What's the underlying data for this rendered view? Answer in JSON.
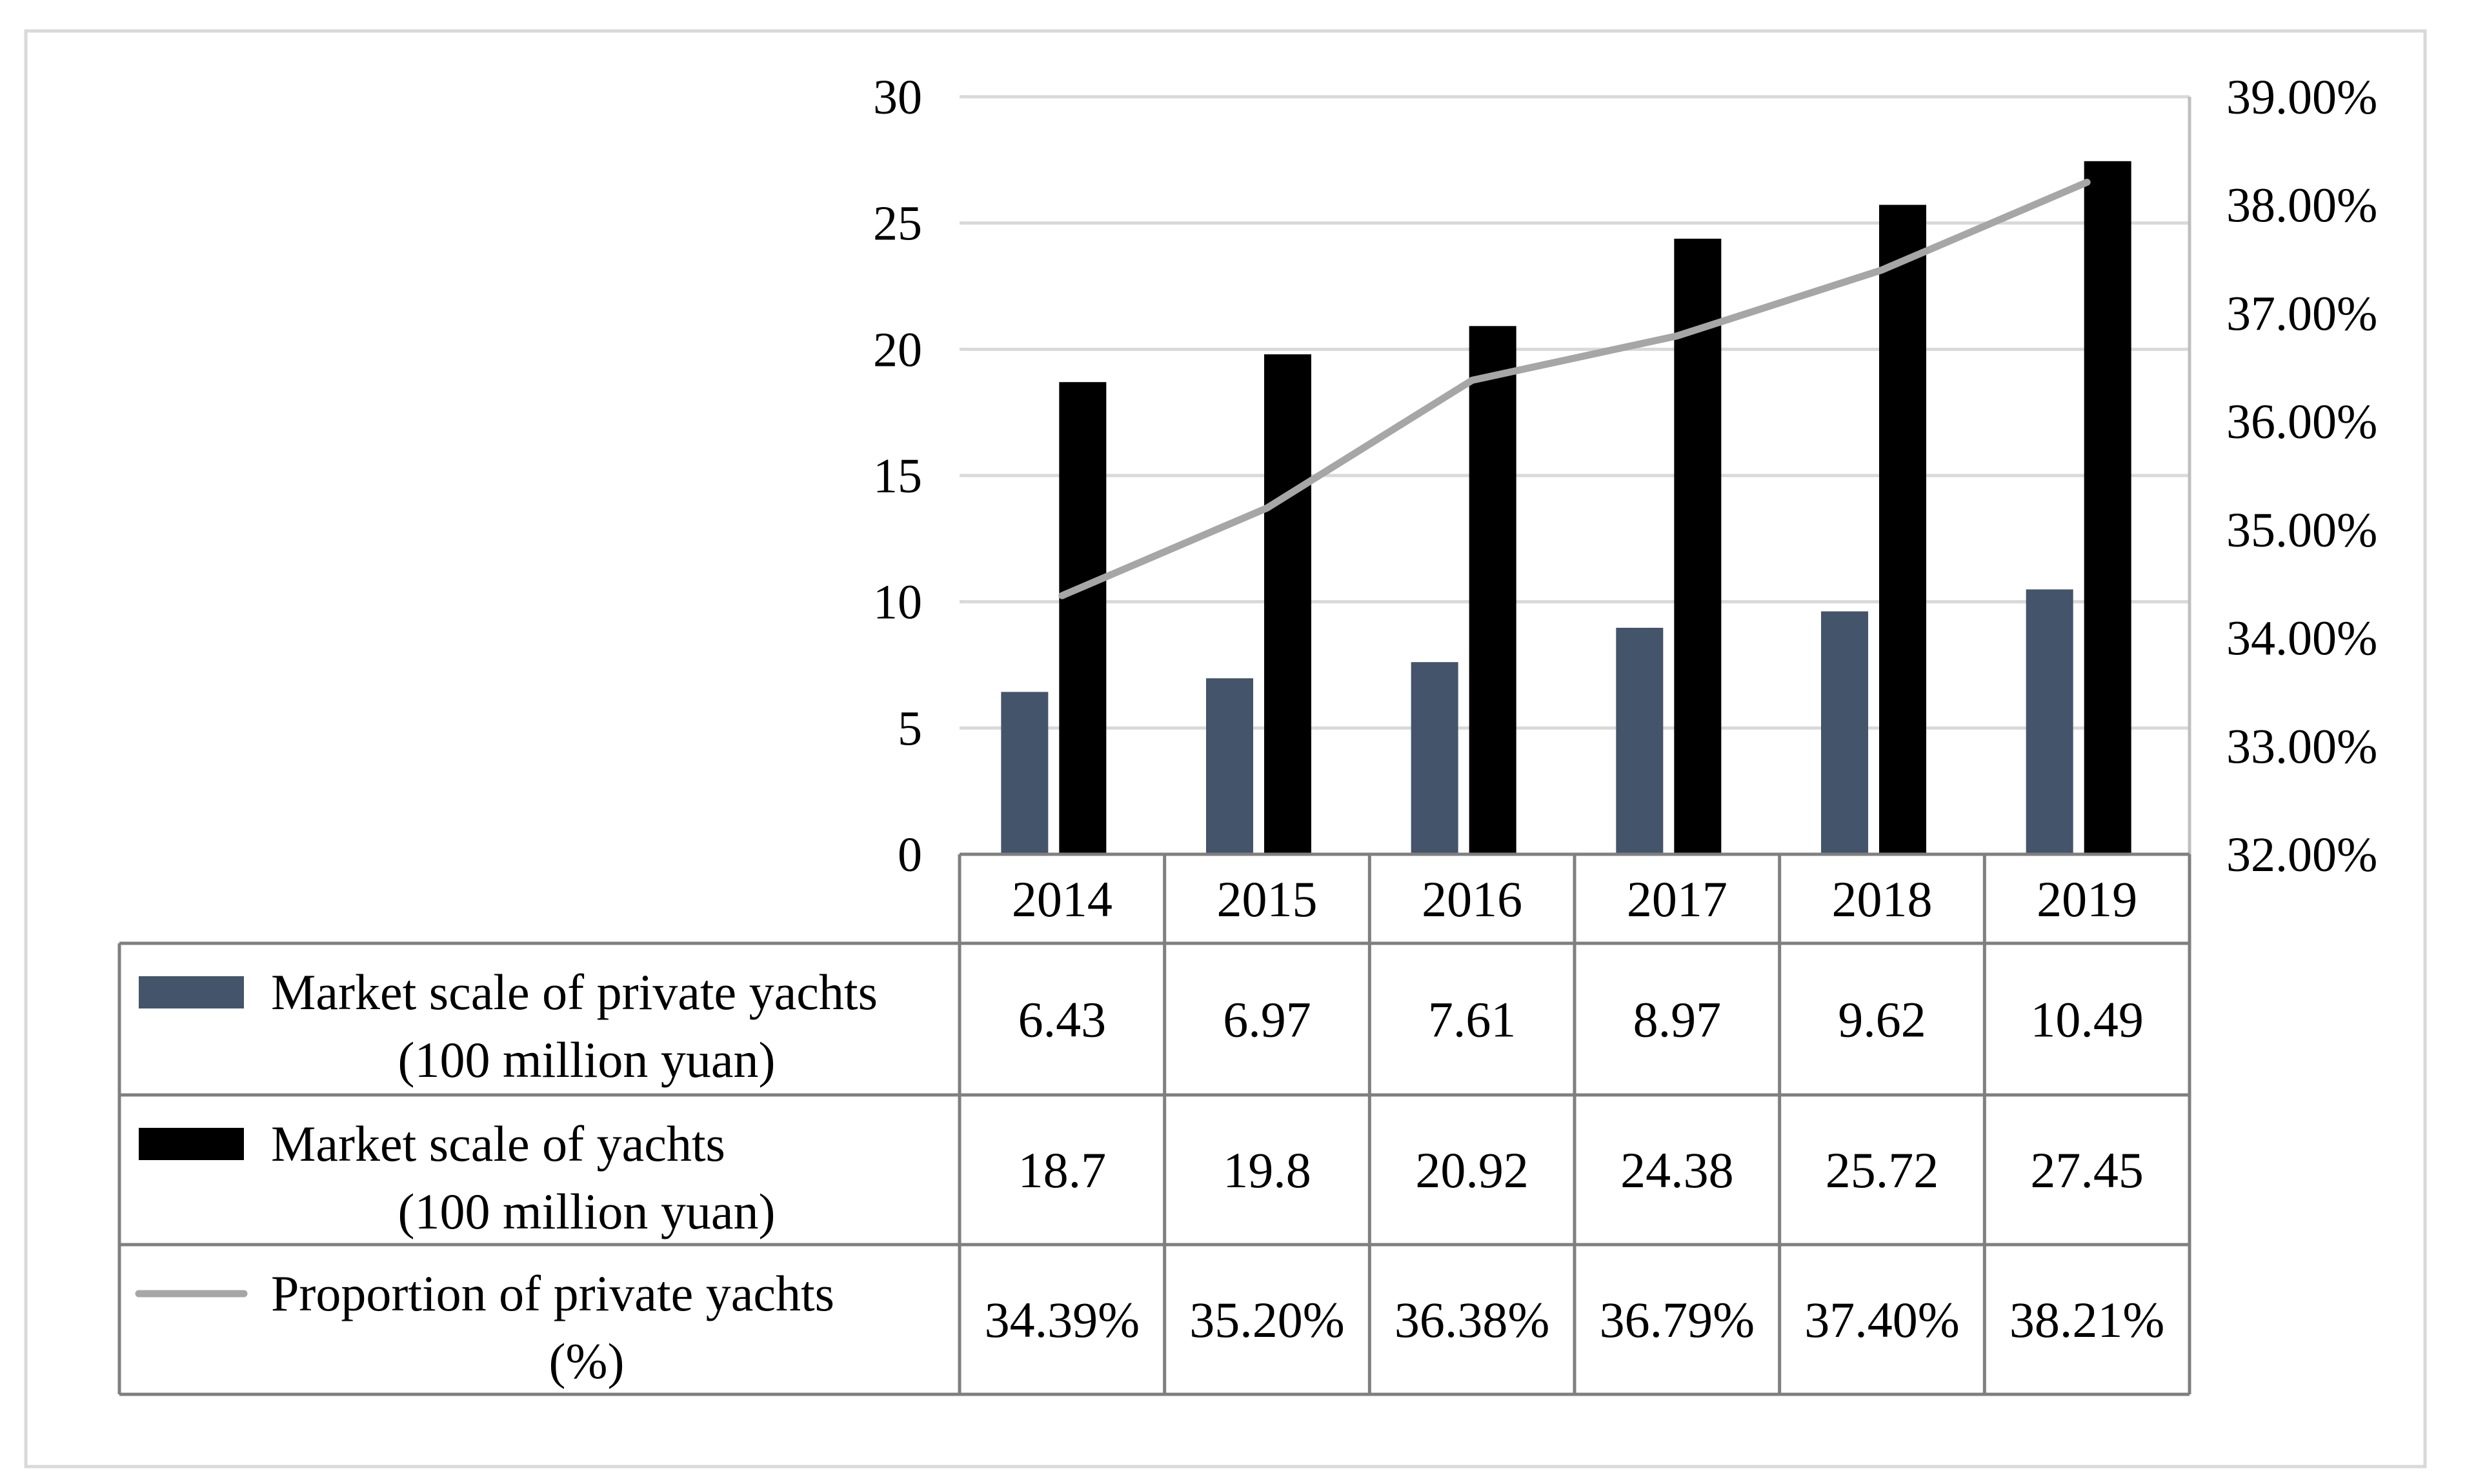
{
  "chart_data": {
    "type": "bar",
    "categories": [
      "2014",
      "2015",
      "2016",
      "2017",
      "2018",
      "2019"
    ],
    "series": [
      {
        "name": "Market scale of private yachts",
        "name_line2": "(100 million yuan)",
        "kind": "bar",
        "axis": "left",
        "color": "#44546a",
        "values": [
          6.43,
          6.97,
          7.61,
          8.97,
          9.62,
          10.49
        ],
        "labels": [
          "6.43",
          "6.97",
          "7.61",
          "8.97",
          "9.62",
          "10.49"
        ]
      },
      {
        "name": "Market scale of yachts",
        "name_line2": "(100 million yuan)",
        "kind": "bar",
        "axis": "left",
        "color": "#000000",
        "values": [
          18.7,
          19.8,
          20.92,
          24.38,
          25.72,
          27.45
        ],
        "labels": [
          "18.7",
          "19.8",
          "20.92",
          "24.38",
          "25.72",
          "27.45"
        ]
      },
      {
        "name": "Proportion of private yachts",
        "name_line2": "(%)",
        "kind": "line",
        "axis": "right",
        "color": "#a6a6a6",
        "values": [
          34.39,
          35.2,
          36.38,
          36.79,
          37.4,
          38.21
        ],
        "labels": [
          "34.39%",
          "35.20%",
          "36.38%",
          "36.79%",
          "37.40%",
          "38.21%"
        ]
      }
    ],
    "left_axis": {
      "ylim": [
        0,
        30
      ],
      "ticks": [
        0,
        5,
        10,
        15,
        20,
        25,
        30
      ],
      "tick_labels": [
        "0",
        "5",
        "10",
        "15",
        "20",
        "25",
        "30"
      ]
    },
    "right_axis": {
      "ylim": [
        32,
        39
      ],
      "ticks": [
        32,
        33,
        34,
        35,
        36,
        37,
        38,
        39
      ],
      "tick_labels": [
        "32.00%",
        "33.00%",
        "34.00%",
        "35.00%",
        "36.00%",
        "37.00%",
        "38.00%",
        "39.00%"
      ]
    },
    "grid": true,
    "legend": "data-table-bottom"
  }
}
